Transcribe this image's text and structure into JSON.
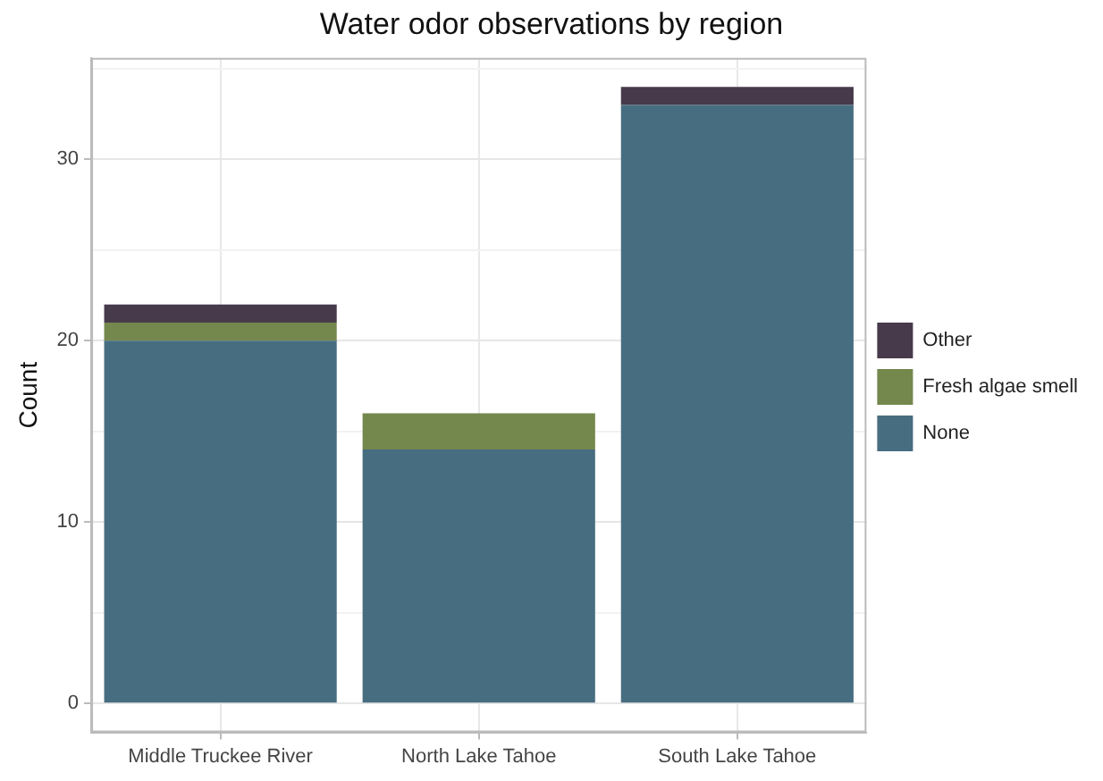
{
  "chart_data": {
    "type": "bar",
    "title": "Water odor observations by region",
    "ylabel": "Count",
    "categories": [
      "Middle Truckee River",
      "North Lake Tahoe",
      "South Lake Tahoe"
    ],
    "stacked": true,
    "series": [
      {
        "name": "None",
        "color": "#476d80",
        "values": [
          20,
          14,
          33
        ]
      },
      {
        "name": "Fresh algae smell",
        "color": "#74874d",
        "values": [
          1,
          2,
          0
        ]
      },
      {
        "name": "Other",
        "color": "#463a4b",
        "values": [
          1,
          0,
          1
        ]
      }
    ],
    "ylim": [
      -1.6,
      35.6
    ],
    "yticks": [
      0,
      {
        "value": 5,
        "label": null
      },
      10,
      {
        "value": 15,
        "label": null
      },
      20,
      {
        "value": 25,
        "label": null
      },
      30,
      {
        "value": 35,
        "label": null
      }
    ],
    "grid": true,
    "legend": "right"
  }
}
